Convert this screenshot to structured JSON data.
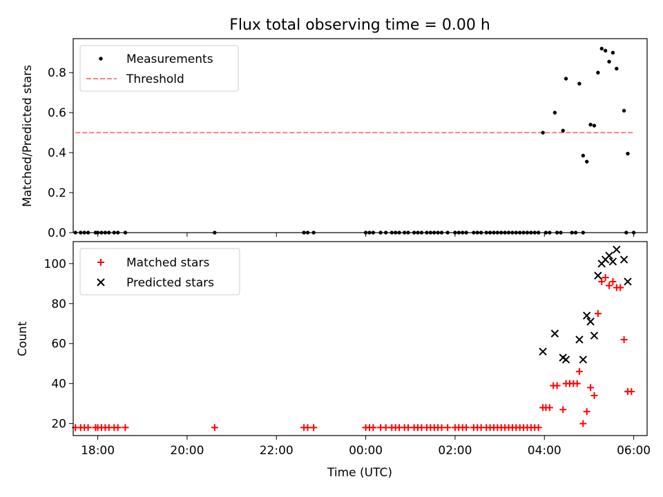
{
  "figure": {
    "title": "Flux total observing time = 0.00 h",
    "xlabel": "Time (UTC)"
  },
  "colors": {
    "measurements": "#000000",
    "threshold": "#ff8080",
    "matched": "#ff0000",
    "predicted": "#000000"
  },
  "chart_data": [
    {
      "type": "scatter",
      "ylabel": "Matched/Predicted stars",
      "xlim": [
        "17:27",
        "06:18"
      ],
      "ylim": [
        0,
        0.97
      ],
      "x_ticks": [],
      "y_ticks": [
        {
          "value": 0.0,
          "label": "0.0"
        },
        {
          "value": 0.2,
          "label": "0.2"
        },
        {
          "value": 0.4,
          "label": "0.4"
        },
        {
          "value": 0.6,
          "label": "0.6"
        },
        {
          "value": 0.8,
          "label": "0.8"
        }
      ],
      "legend": {
        "position": "upper left",
        "entries": [
          "Measurements",
          "Threshold"
        ]
      },
      "threshold": {
        "name": "Threshold",
        "value": 0.5,
        "x_start": "17:30",
        "x_end": "06:00"
      },
      "series": [
        {
          "name": "Measurements",
          "marker": "dot",
          "points": [
            [
              "17:30",
              0.0
            ],
            [
              "17:37",
              0.0
            ],
            [
              "17:42",
              0.0
            ],
            [
              "17:47",
              0.0
            ],
            [
              "17:57",
              0.0
            ],
            [
              "18:00",
              0.0
            ],
            [
              "18:05",
              0.0
            ],
            [
              "18:10",
              0.0
            ],
            [
              "18:15",
              0.0
            ],
            [
              "18:22",
              0.0
            ],
            [
              "18:27",
              0.0
            ],
            [
              "18:37",
              0.0
            ],
            [
              "20:37",
              0.0
            ],
            [
              "22:37",
              0.0
            ],
            [
              "22:42",
              0.0
            ],
            [
              "22:50",
              0.0
            ],
            [
              "00:00",
              0.0
            ],
            [
              "00:05",
              0.0
            ],
            [
              "00:10",
              0.0
            ],
            [
              "00:20",
              0.0
            ],
            [
              "00:27",
              0.0
            ],
            [
              "00:35",
              0.0
            ],
            [
              "00:40",
              0.0
            ],
            [
              "00:45",
              0.0
            ],
            [
              "00:52",
              0.0
            ],
            [
              "00:57",
              0.0
            ],
            [
              "01:05",
              0.0
            ],
            [
              "01:10",
              0.0
            ],
            [
              "01:15",
              0.0
            ],
            [
              "01:22",
              0.0
            ],
            [
              "01:27",
              0.0
            ],
            [
              "01:32",
              0.0
            ],
            [
              "01:37",
              0.0
            ],
            [
              "01:42",
              0.0
            ],
            [
              "01:50",
              0.0
            ],
            [
              "02:00",
              0.0
            ],
            [
              "02:05",
              0.0
            ],
            [
              "02:10",
              0.0
            ],
            [
              "02:15",
              0.0
            ],
            [
              "02:25",
              0.0
            ],
            [
              "02:30",
              0.0
            ],
            [
              "02:35",
              0.0
            ],
            [
              "02:42",
              0.0
            ],
            [
              "02:47",
              0.0
            ],
            [
              "02:52",
              0.0
            ],
            [
              "02:57",
              0.0
            ],
            [
              "03:02",
              0.0
            ],
            [
              "03:07",
              0.0
            ],
            [
              "03:12",
              0.0
            ],
            [
              "03:17",
              0.0
            ],
            [
              "03:22",
              0.0
            ],
            [
              "03:27",
              0.0
            ],
            [
              "03:32",
              0.0
            ],
            [
              "03:37",
              0.0
            ],
            [
              "03:42",
              0.0
            ],
            [
              "03:47",
              0.0
            ],
            [
              "03:52",
              0.0
            ],
            [
              "04:02",
              0.0
            ],
            [
              "04:07",
              0.0
            ],
            [
              "04:17",
              0.0
            ],
            [
              "04:22",
              0.0
            ],
            [
              "04:37",
              0.0
            ],
            [
              "04:42",
              0.0
            ],
            [
              "04:52",
              0.0
            ],
            [
              "05:50",
              0.0
            ],
            [
              "06:00",
              0.0
            ],
            [
              "03:58",
              0.5
            ],
            [
              "04:14",
              0.6
            ],
            [
              "04:25",
              0.51
            ],
            [
              "04:29",
              0.77
            ],
            [
              "04:47",
              0.745
            ],
            [
              "04:52",
              0.385
            ],
            [
              "04:57",
              0.355
            ],
            [
              "05:02",
              0.54
            ],
            [
              "05:07",
              0.535
            ],
            [
              "05:12",
              0.8
            ],
            [
              "05:17",
              0.92
            ],
            [
              "05:22",
              0.91
            ],
            [
              "05:27",
              0.855
            ],
            [
              "05:32",
              0.9
            ],
            [
              "05:37",
              0.82
            ],
            [
              "05:47",
              0.61
            ],
            [
              "05:52",
              0.395
            ]
          ]
        }
      ]
    },
    {
      "type": "scatter",
      "ylabel": "Count",
      "xlim": [
        "17:27",
        "06:18"
      ],
      "ylim": [
        14,
        111
      ],
      "x_ticks": [
        {
          "value": "18:00",
          "label": "18:00"
        },
        {
          "value": "20:00",
          "label": "20:00"
        },
        {
          "value": "22:00",
          "label": "22:00"
        },
        {
          "value": "00:00",
          "label": "00:00"
        },
        {
          "value": "02:00",
          "label": "02:00"
        },
        {
          "value": "04:00",
          "label": "04:00"
        },
        {
          "value": "06:00",
          "label": "06:00"
        }
      ],
      "y_ticks": [
        {
          "value": 20,
          "label": "20"
        },
        {
          "value": 40,
          "label": "40"
        },
        {
          "value": 60,
          "label": "60"
        },
        {
          "value": 80,
          "label": "80"
        },
        {
          "value": 100,
          "label": "100"
        }
      ],
      "legend": {
        "position": "upper left",
        "entries": [
          "Matched stars",
          "Predicted stars"
        ]
      },
      "series": [
        {
          "name": "Matched stars",
          "marker": "plus",
          "points": [
            [
              "17:30",
              18
            ],
            [
              "17:37",
              18
            ],
            [
              "17:42",
              18
            ],
            [
              "17:47",
              18
            ],
            [
              "17:57",
              18
            ],
            [
              "18:00",
              18
            ],
            [
              "18:05",
              18
            ],
            [
              "18:10",
              18
            ],
            [
              "18:15",
              18
            ],
            [
              "18:22",
              18
            ],
            [
              "18:27",
              18
            ],
            [
              "18:37",
              18
            ],
            [
              "20:37",
              18
            ],
            [
              "22:37",
              18
            ],
            [
              "22:42",
              18
            ],
            [
              "22:50",
              18
            ],
            [
              "00:00",
              18
            ],
            [
              "00:05",
              18
            ],
            [
              "00:10",
              18
            ],
            [
              "00:20",
              18
            ],
            [
              "00:27",
              18
            ],
            [
              "00:35",
              18
            ],
            [
              "00:40",
              18
            ],
            [
              "00:45",
              18
            ],
            [
              "00:52",
              18
            ],
            [
              "00:57",
              18
            ],
            [
              "01:05",
              18
            ],
            [
              "01:10",
              18
            ],
            [
              "01:15",
              18
            ],
            [
              "01:22",
              18
            ],
            [
              "01:27",
              18
            ],
            [
              "01:32",
              18
            ],
            [
              "01:37",
              18
            ],
            [
              "01:42",
              18
            ],
            [
              "01:50",
              18
            ],
            [
              "02:00",
              18
            ],
            [
              "02:05",
              18
            ],
            [
              "02:10",
              18
            ],
            [
              "02:15",
              18
            ],
            [
              "02:25",
              18
            ],
            [
              "02:30",
              18
            ],
            [
              "02:35",
              18
            ],
            [
              "02:42",
              18
            ],
            [
              "02:47",
              18
            ],
            [
              "02:52",
              18
            ],
            [
              "02:57",
              18
            ],
            [
              "03:02",
              18
            ],
            [
              "03:07",
              18
            ],
            [
              "03:12",
              18
            ],
            [
              "03:17",
              18
            ],
            [
              "03:22",
              18
            ],
            [
              "03:27",
              18
            ],
            [
              "03:32",
              18
            ],
            [
              "03:37",
              18
            ],
            [
              "03:42",
              18
            ],
            [
              "03:47",
              18
            ],
            [
              "03:52",
              18
            ],
            [
              "03:58",
              28
            ],
            [
              "04:02",
              28
            ],
            [
              "04:07",
              28
            ],
            [
              "04:12",
              39
            ],
            [
              "04:17",
              39
            ],
            [
              "04:25",
              27
            ],
            [
              "04:29",
              40
            ],
            [
              "04:34",
              40
            ],
            [
              "04:39",
              40
            ],
            [
              "04:44",
              40
            ],
            [
              "04:47",
              46
            ],
            [
              "04:52",
              20
            ],
            [
              "04:57",
              26
            ],
            [
              "05:02",
              38
            ],
            [
              "05:07",
              34
            ],
            [
              "05:12",
              75
            ],
            [
              "05:17",
              91
            ],
            [
              "05:22",
              93
            ],
            [
              "05:27",
              89
            ],
            [
              "05:32",
              91
            ],
            [
              "05:37",
              88
            ],
            [
              "05:42",
              88
            ],
            [
              "05:47",
              62
            ],
            [
              "05:52",
              36
            ],
            [
              "05:57",
              36
            ]
          ]
        },
        {
          "name": "Predicted stars",
          "marker": "x",
          "points": [
            [
              "03:58",
              56
            ],
            [
              "04:14",
              65
            ],
            [
              "04:25",
              53
            ],
            [
              "04:29",
              52
            ],
            [
              "04:47",
              62
            ],
            [
              "04:52",
              52
            ],
            [
              "04:57",
              74
            ],
            [
              "05:02",
              71
            ],
            [
              "05:07",
              64
            ],
            [
              "05:12",
              94
            ],
            [
              "05:17",
              100
            ],
            [
              "05:22",
              102
            ],
            [
              "05:27",
              104
            ],
            [
              "05:32",
              101
            ],
            [
              "05:37",
              107
            ],
            [
              "05:47",
              102
            ],
            [
              "05:52",
              91
            ]
          ]
        }
      ]
    }
  ]
}
